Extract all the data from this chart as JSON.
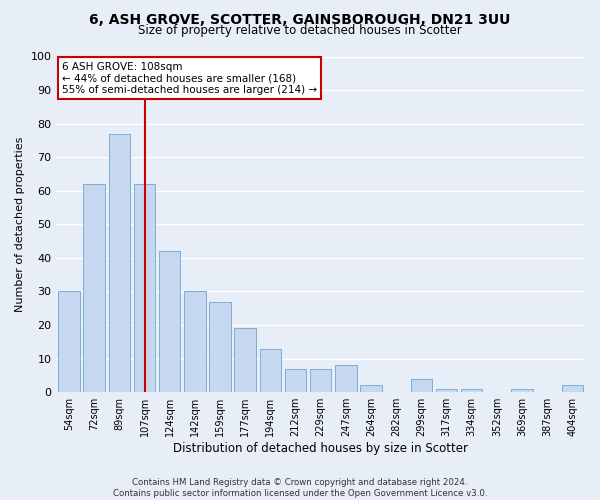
{
  "title1": "6, ASH GROVE, SCOTTER, GAINSBOROUGH, DN21 3UU",
  "title2": "Size of property relative to detached houses in Scotter",
  "xlabel": "Distribution of detached houses by size in Scotter",
  "ylabel": "Number of detached properties",
  "bar_color": "#c5d8f0",
  "bar_edge_color": "#7aafd4",
  "bg_color": "#e8eef8",
  "fig_color": "#e8eef8",
  "grid_color": "#ffffff",
  "categories": [
    "54sqm",
    "72sqm",
    "89sqm",
    "107sqm",
    "124sqm",
    "142sqm",
    "159sqm",
    "177sqm",
    "194sqm",
    "212sqm",
    "229sqm",
    "247sqm",
    "264sqm",
    "282sqm",
    "299sqm",
    "317sqm",
    "334sqm",
    "352sqm",
    "369sqm",
    "387sqm",
    "404sqm"
  ],
  "values": [
    30,
    62,
    77,
    62,
    42,
    30,
    27,
    19,
    13,
    7,
    7,
    8,
    2,
    0,
    4,
    1,
    1,
    0,
    1,
    0,
    2
  ],
  "vline_x": 3,
  "vline_color": "#cc0000",
  "annotation_title": "6 ASH GROVE: 108sqm",
  "annotation_line1": "← 44% of detached houses are smaller (168)",
  "annotation_line2": "55% of semi-detached houses are larger (214) →",
  "annotation_box_color": "#ffffff",
  "annotation_box_edge": "#cc0000",
  "ylim": [
    0,
    100
  ],
  "yticks": [
    0,
    10,
    20,
    30,
    40,
    50,
    60,
    70,
    80,
    90,
    100
  ],
  "footer1": "Contains HM Land Registry data © Crown copyright and database right 2024.",
  "footer2": "Contains public sector information licensed under the Open Government Licence v3.0."
}
